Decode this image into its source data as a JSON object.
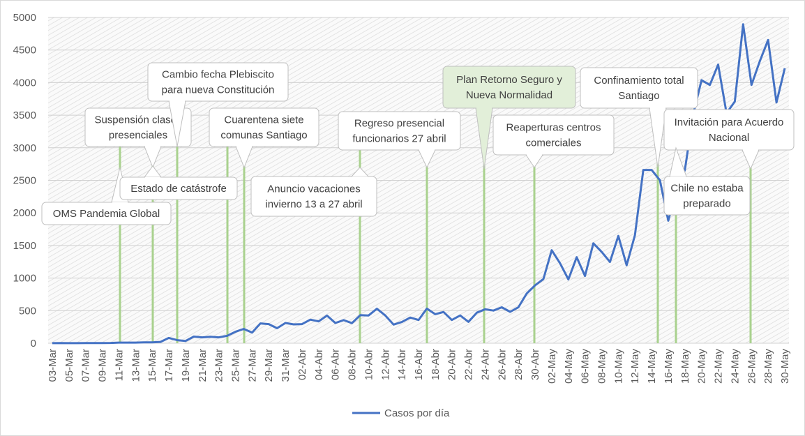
{
  "chart_data": {
    "type": "line",
    "categories": [
      "03-Mar",
      null,
      "05-Mar",
      null,
      "07-Mar",
      null,
      "09-Mar",
      null,
      "11-Mar",
      null,
      "13-Mar",
      null,
      "15-Mar",
      null,
      "17-Mar",
      null,
      "19-Mar",
      null,
      "21-Mar",
      null,
      "23-Mar",
      null,
      "25-Mar",
      null,
      "27-Mar",
      null,
      "29-Mar",
      null,
      "31-Mar",
      null,
      "02-Abr",
      null,
      "04-Abr",
      null,
      "06-Abr",
      null,
      "08-Abr",
      null,
      "10-Abr",
      null,
      "12-Abr",
      null,
      "14-Abr",
      null,
      "16-Abr",
      null,
      "18-Abr",
      null,
      "20-Abr",
      null,
      "22-Abr",
      null,
      "24-Abr",
      null,
      "26-Abr",
      null,
      "28-Abr",
      null,
      "30-Abr",
      null,
      "02-May",
      null,
      "04-May",
      null,
      "06-May",
      null,
      "08-May",
      null,
      "10-May",
      null,
      "12-May",
      null,
      "14-May",
      null,
      "16-May",
      null,
      "18-May",
      null,
      "20-May",
      null,
      "22-May",
      null,
      "24-May",
      null,
      "26-May",
      null,
      "28-May",
      null,
      "30-May"
    ],
    "series": [
      {
        "name": "Casos por día",
        "color": "#4472c4",
        "values": [
          1,
          3,
          1,
          1,
          2,
          3,
          3,
          4,
          10,
          10,
          10,
          14,
          14,
          20,
          81,
          47,
          34,
          102,
          90,
          100,
          90,
          114,
          176,
          220,
          164,
          304,
          293,
          230,
          310,
          289,
          293,
          362,
          335,
          424,
          310,
          354,
          308,
          430,
          426,
          529,
          426,
          286,
          325,
          394,
          357,
          531,
          445,
          480,
          357,
          426,
          328,
          469,
          521,
          501,
          551,
          482,
          552,
          763,
          888,
          985,
          1427,
          1228,
          980,
          1320,
          1032,
          1533,
          1401,
          1247,
          1647,
          1197,
          1658,
          2660,
          2660,
          2502,
          1880,
          2353,
          2660,
          3520,
          4038,
          3964,
          4276,
          3530,
          3710,
          4895,
          3964,
          4328,
          4654,
          3695,
          4220
        ]
      }
    ],
    "ylim": [
      0,
      5000
    ],
    "yticks": [
      0,
      500,
      1000,
      1500,
      2000,
      2500,
      3000,
      3500,
      4000,
      4500,
      5000
    ],
    "grid": true,
    "legend": "bottom",
    "annotations": [
      [
        "OMS Pandemia Global"
      ],
      [
        "Suspensión clases",
        "presenciales"
      ],
      [
        "Estado de catástrofe"
      ],
      [
        "Cambio fecha Plebiscito",
        "para nueva Constitución"
      ],
      [
        "Cuarentena  siete",
        "comunas Santiago"
      ],
      [
        "Anuncio vacaciones",
        "invierno 13 a 27 abril"
      ],
      [
        "Regreso presencial",
        "funcionarios 27 abril"
      ],
      [
        "Plan  Retorno Seguro y",
        "Nueva Normalidad"
      ],
      [
        "Reaperturas centros",
        "comerciales"
      ],
      [
        "Confinamiento total",
        "Santiago"
      ],
      [
        "Invitación para Acuerdo",
        "Nacional"
      ],
      [
        "Chile no estaba",
        "preparado"
      ]
    ]
  }
}
